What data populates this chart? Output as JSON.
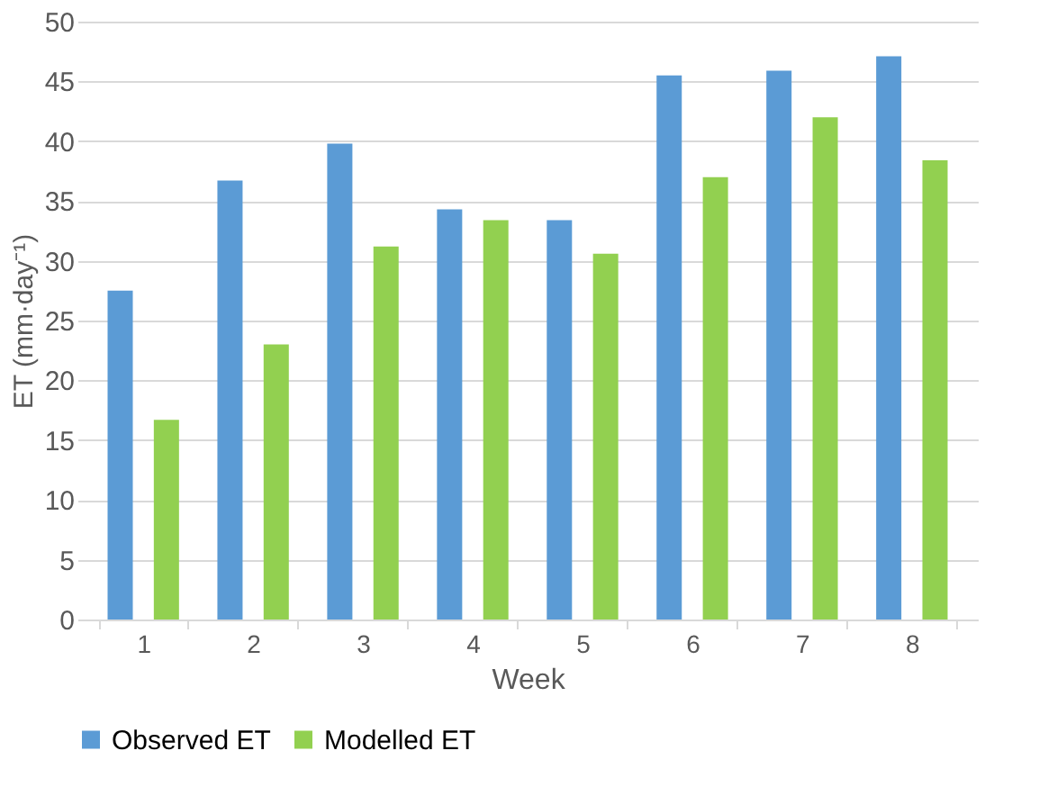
{
  "chart_data": {
    "type": "bar",
    "xlabel": "Week",
    "ylabel": "ET (mm·day⁻¹)",
    "categories": [
      "1",
      "2",
      "3",
      "4",
      "5",
      "6",
      "7",
      "8"
    ],
    "series": [
      {
        "name": "Observed ET",
        "color": "#5b9bd5",
        "values": [
          27.5,
          36.7,
          39.8,
          34.3,
          33.4,
          45.5,
          45.9,
          47.1
        ]
      },
      {
        "name": "Modelled ET",
        "color": "#92d050",
        "values": [
          16.7,
          23.0,
          31.2,
          33.4,
          30.6,
          37.0,
          42.0,
          38.4
        ]
      }
    ],
    "ylim": [
      0,
      50
    ],
    "yticks": [
      0,
      5,
      10,
      15,
      20,
      25,
      30,
      35,
      40,
      45,
      50
    ],
    "grid": "y",
    "legend": "bottom"
  }
}
